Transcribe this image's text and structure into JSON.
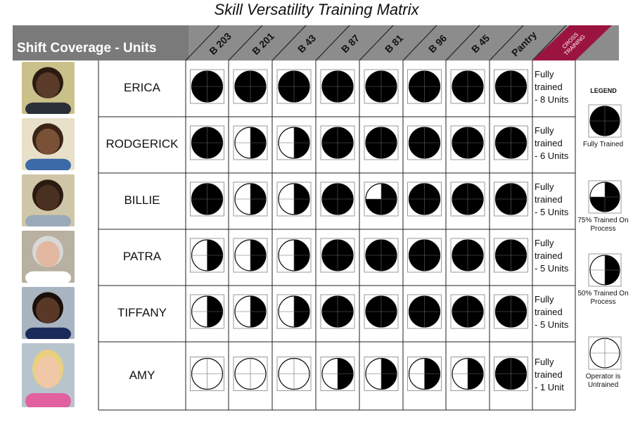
{
  "title": "Skill Versatility Training Matrix",
  "header": {
    "label": "Shift Coverage - Units",
    "cross_training": "CROSS TRAINING",
    "bar_color": "#8c8c8c",
    "cross_color": "#9b1440"
  },
  "columns": [
    "B 203",
    "B 201",
    "B 43",
    "B 87",
    "B 81",
    "B 96",
    "B 45",
    "Pantry"
  ],
  "rows": [
    {
      "name": "ERICA",
      "levels": [
        1,
        1,
        1,
        1,
        1,
        1,
        1,
        1
      ],
      "status": [
        "Fully",
        "trained",
        "- 8 Units"
      ]
    },
    {
      "name": "RODGERICK",
      "levels": [
        1,
        0.5,
        0.5,
        1,
        1,
        1,
        1,
        1
      ],
      "status": [
        "Fully",
        "trained",
        "- 6 Units"
      ]
    },
    {
      "name": "BILLIE",
      "levels": [
        1,
        0.5,
        0.5,
        1,
        0.75,
        1,
        1,
        1
      ],
      "status": [
        "Fully",
        "trained",
        "- 5 Units"
      ]
    },
    {
      "name": "PATRA",
      "levels": [
        0.5,
        0.5,
        0.5,
        1,
        1,
        1,
        1,
        1
      ],
      "status": [
        "Fully",
        "trained",
        "- 5 Units"
      ]
    },
    {
      "name": "TIFFANY",
      "levels": [
        0.5,
        0.5,
        0.5,
        1,
        1,
        1,
        1,
        1
      ],
      "status": [
        "Fully",
        "trained",
        "- 5 Units"
      ]
    },
    {
      "name": "AMY",
      "levels": [
        0,
        0,
        0,
        0.5,
        0.5,
        0.5,
        0.5,
        1
      ],
      "status": [
        "Fully",
        "trained",
        "- 1 Unit"
      ]
    }
  ],
  "legend": {
    "title": "LEGEND",
    "items": [
      {
        "level": 1,
        "label": "Fully Trained"
      },
      {
        "level": 0.75,
        "label": "75% Trained On Process"
      },
      {
        "level": 0.5,
        "label": "50% Trained On Process"
      },
      {
        "level": 0,
        "label": "Operator is Untrained"
      }
    ]
  },
  "photo_colors": [
    {
      "bg": "#c9c08a",
      "skin": "#5a3a28",
      "hair": "#2a1a10",
      "shirt": "#2b2f38"
    },
    {
      "bg": "#e8e0c8",
      "skin": "#7a5036",
      "hair": "#3a2418",
      "shirt": "#3a6aa8"
    },
    {
      "bg": "#cfc6a8",
      "skin": "#4a3020",
      "hair": "#2a1a10",
      "shirt": "#9aa9b8"
    },
    {
      "bg": "#b8b0a0",
      "skin": "#e2b8a0",
      "hair": "#d8d8d8",
      "shirt": "#ffffff"
    },
    {
      "bg": "#a8b4c0",
      "skin": "#5a3828",
      "hair": "#1a100a",
      "shirt": "#1a2a5a"
    },
    {
      "bg": "#b8c4cc",
      "skin": "#f0c8a8",
      "hair": "#e8d080",
      "shirt": "#e060a0"
    }
  ]
}
